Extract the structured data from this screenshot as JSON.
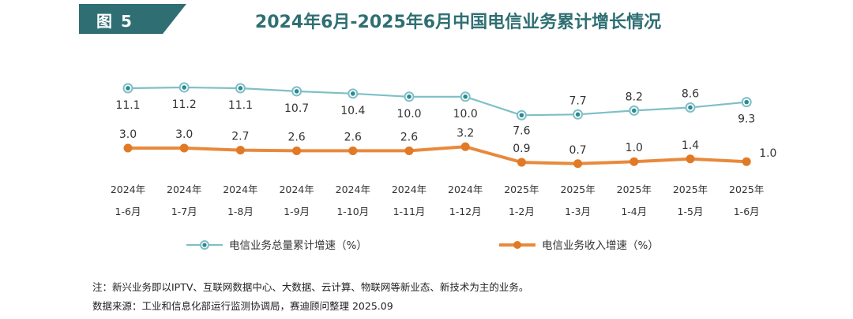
{
  "header": {
    "figure_label": "图 5",
    "title": "2024年6月-2025年6月中国电信业务累计增长情况"
  },
  "colors": {
    "badge": "#2f6f73",
    "series_total": "#7fbfc6",
    "series_total_marker": "#2a8a92",
    "series_revenue": "#e8893c",
    "series_revenue_marker": "#e07a26"
  },
  "chart_data": {
    "type": "line",
    "title": "2024年6月-2025年6月中国电信业务累计增长情况",
    "x": [
      {
        "year": "2024年",
        "period": "1-6月"
      },
      {
        "year": "2024年",
        "period": "1-7月"
      },
      {
        "year": "2024年",
        "period": "1-8月"
      },
      {
        "year": "2024年",
        "period": "1-9月"
      },
      {
        "year": "2024年",
        "period": "1-10月"
      },
      {
        "year": "2024年",
        "period": "1-11月"
      },
      {
        "year": "2024年",
        "period": "1-12月"
      },
      {
        "year": "2025年",
        "period": "1-2月"
      },
      {
        "year": "2025年",
        "period": "1-3月"
      },
      {
        "year": "2025年",
        "period": "1-4月"
      },
      {
        "year": "2025年",
        "period": "1-5月"
      },
      {
        "year": "2025年",
        "period": "1-6月"
      }
    ],
    "series": [
      {
        "name": "电信业务总量累计增速（%）",
        "values": [
          11.1,
          11.2,
          11.1,
          10.7,
          10.4,
          10.0,
          10.0,
          7.6,
          7.7,
          8.2,
          8.6,
          9.3
        ]
      },
      {
        "name": "电信业务收入增速（%）",
        "values": [
          3.0,
          3.0,
          2.7,
          2.6,
          2.6,
          2.6,
          3.2,
          0.9,
          0.7,
          1.0,
          1.4,
          1.0
        ]
      }
    ],
    "grid": false,
    "legend": "bottom"
  },
  "footer": {
    "note": "注：新兴业务即以IPTV、互联网数据中心、大数据、云计算、物联网等新业态、新技术为主的业务。",
    "source": "数据来源：工业和信息化部运行监测协调局，赛迪顾问整理 2025.09"
  }
}
